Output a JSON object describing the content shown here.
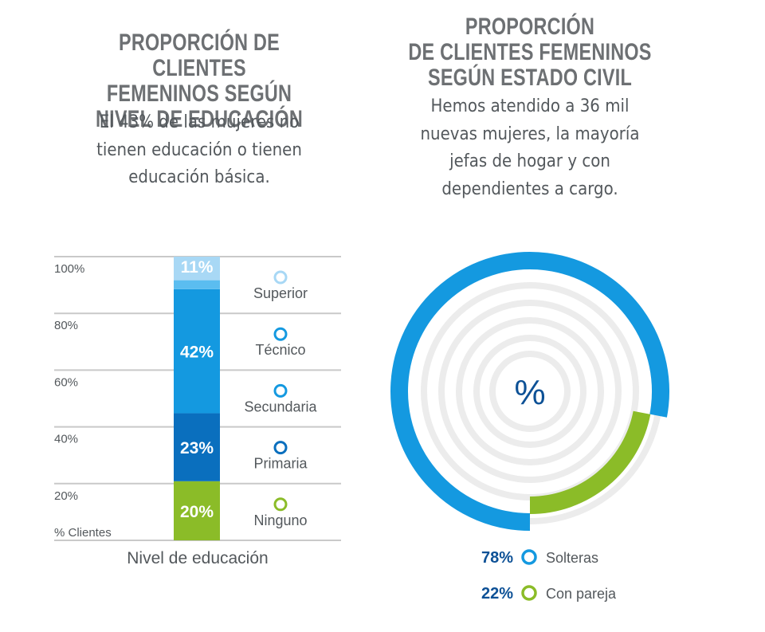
{
  "left": {
    "title_lines": [
      "PROPORCIÓN DE CLIENTES",
      "FEMENINOS SEGÚN",
      "NIVEL DE EDUCACIÓN"
    ],
    "subtitle_lines": [
      "El 43% de las mujeres no",
      "tienen educación o tienen",
      "educación básica."
    ]
  },
  "right": {
    "title_lines": [
      "PROPORCIÓN",
      "DE CLIENTES FEMENINOS",
      "SEGÚN ESTADO CIVIL"
    ],
    "subtitle_lines": [
      "Hemos atendido a 36 mil",
      "nuevas mujeres, la mayoría",
      "jefas de hogar y con",
      "dependientes a cargo."
    ]
  },
  "colors": {
    "superior": "#a8d8f5",
    "tecnico": "#1499e0",
    "secundaria": "#1499e0",
    "primaria": "#0a6fbe",
    "ninguno": "#8bbc28",
    "solteras": "#1499e0",
    "con_pareja": "#8bbc28",
    "dark_blue_text": "#0d5196",
    "grid": "#c9c9c9"
  },
  "chart_data": [
    {
      "type": "bar",
      "subtype": "stacked",
      "xlabel": "Nivel de educación",
      "ylabel": "% Clientes",
      "y_tick_labels": [
        "100%",
        "80%",
        "60%",
        "40%",
        "20%"
      ],
      "levels": [
        "Superior",
        "Técnico",
        "Secundaria",
        "Primaria",
        "Ninguno"
      ],
      "stack_bottom_to_top": [
        {
          "name": "Ninguno",
          "value": 20,
          "label": "20%",
          "color_key": "ninguno"
        },
        {
          "name": "Primaria",
          "value": 23,
          "label": "23%",
          "color_key": "primaria"
        },
        {
          "name": "Técnico / Secundaria",
          "value": 42,
          "label": "42%",
          "color_key": "tecnico"
        },
        {
          "name": "Superior",
          "value": 11,
          "label": "11%",
          "color_key": "superior"
        }
      ]
    },
    {
      "type": "pie",
      "subtype": "radial-arc",
      "center_label": "%",
      "slices": [
        {
          "name": "Solteras",
          "value": 78,
          "label": "78%",
          "color_key": "solteras"
        },
        {
          "name": "Con pareja",
          "value": 22,
          "label": "22%",
          "color_key": "con_pareja"
        }
      ]
    }
  ]
}
